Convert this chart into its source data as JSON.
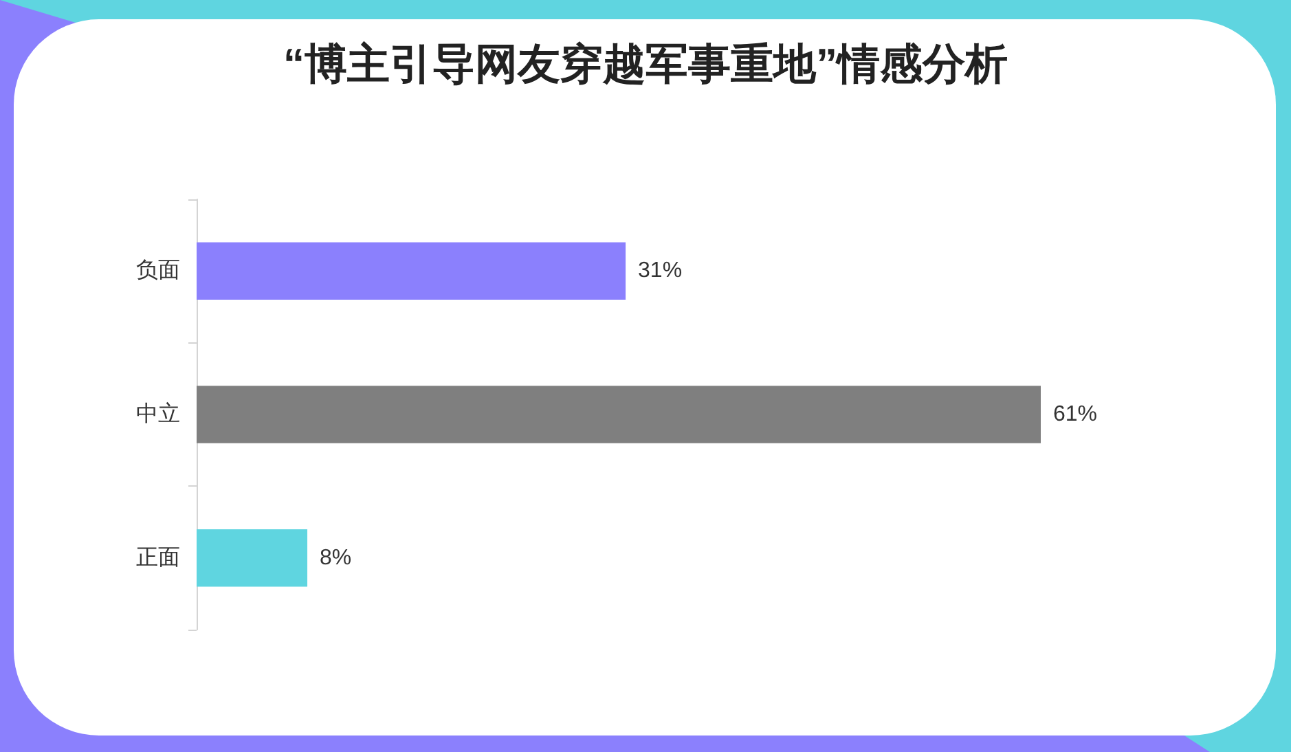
{
  "chart_data": {
    "type": "bar",
    "orientation": "horizontal",
    "title": "“博主引导网友穿越军事重地”情感分析",
    "categories": [
      "负面",
      "中立",
      "正面"
    ],
    "values": [
      31,
      61,
      8
    ],
    "colors": [
      "#8b80fd",
      "#7f7f7f",
      "#5fd5e0"
    ],
    "value_labels": [
      "31%",
      "61%",
      "8%"
    ]
  }
}
